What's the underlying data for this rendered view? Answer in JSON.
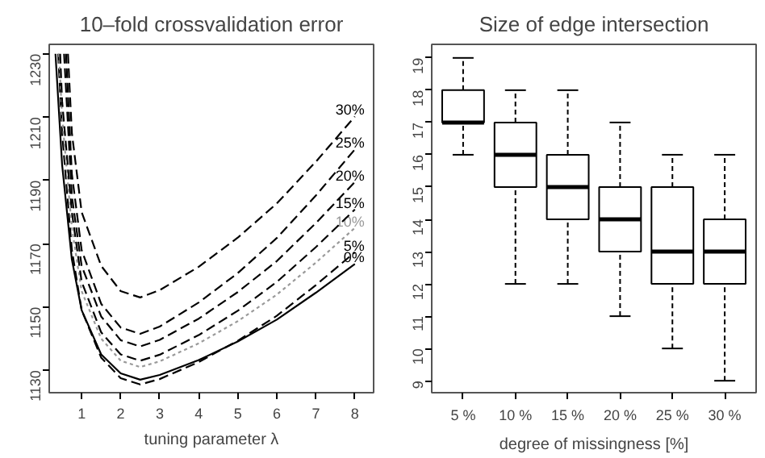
{
  "chart_data": [
    {
      "type": "line",
      "title": "10–fold crossvalidation error",
      "xlabel": "tuning parameter λ",
      "xlim": [
        0.17,
        8.48
      ],
      "ylim": [
        1122.9,
        1233
      ],
      "xticks": [
        1,
        2,
        3,
        4,
        5,
        6,
        7,
        8
      ],
      "yticks": [
        1130,
        1150,
        1170,
        1190,
        1210,
        1230
      ],
      "grid": false,
      "marker": "none",
      "series": [
        {
          "name": "0%",
          "color": "#000000",
          "line_style": "solid",
          "x": [
            0.33,
            0.5,
            0.75,
            1,
            1.5,
            2,
            2.5,
            3,
            4,
            5,
            6,
            7,
            8
          ],
          "values": [
            1230,
            1195,
            1165,
            1149,
            1135,
            1129,
            1127,
            1128.5,
            1133.2,
            1139.1,
            1146.0,
            1154.5,
            1163.6
          ]
        },
        {
          "name": "5%",
          "color": "#000000",
          "line_style": "dashed",
          "x": [
            0.4,
            0.5,
            0.75,
            1,
            1.5,
            2,
            2.5,
            3,
            4,
            5,
            6,
            7,
            8
          ],
          "values": [
            1230,
            1205,
            1168,
            1149,
            1134,
            1127.5,
            1125.5,
            1127.2,
            1132.6,
            1139.3,
            1147.2,
            1156.9,
            1167.3
          ]
        },
        {
          "name": "10%",
          "color": "#999999",
          "line_style": "dotted",
          "x": [
            0.42,
            0.5,
            0.75,
            1,
            1.5,
            2,
            2.5,
            3,
            4,
            5,
            6,
            7,
            8
          ],
          "values": [
            1230,
            1210,
            1175,
            1155,
            1140,
            1133,
            1131,
            1132.8,
            1138.5,
            1145.5,
            1153.9,
            1164,
            1175
          ]
        },
        {
          "name": "15%",
          "color": "#000000",
          "line_style": "dashed",
          "x": [
            0.45,
            0.5,
            0.75,
            1,
            1.5,
            2,
            2.5,
            3,
            4,
            5,
            6,
            7,
            8
          ],
          "values": [
            1230,
            1215,
            1180,
            1158,
            1142,
            1135,
            1133,
            1134.9,
            1141.1,
            1148.8,
            1157.9,
            1168.9,
            1180.8
          ]
        },
        {
          "name": "20%",
          "color": "#000000",
          "line_style": "dashed",
          "x": [
            0.55,
            0.75,
            1,
            1.5,
            2,
            2.5,
            3,
            4,
            5,
            6,
            7,
            8
          ],
          "values": [
            1230,
            1185,
            1163,
            1147,
            1139.5,
            1137.5,
            1139.6,
            1146.3,
            1154.7,
            1164.5,
            1176.5,
            1189.5
          ]
        },
        {
          "name": "25%",
          "color": "#000000",
          "line_style": "dashed",
          "x": [
            0.6,
            0.75,
            1,
            1.5,
            2,
            2.5,
            3,
            4,
            5,
            6,
            7,
            8
          ],
          "values": [
            1230,
            1192,
            1168,
            1151,
            1143.5,
            1141.5,
            1143.8,
            1151.4,
            1160.7,
            1171.8,
            1185.2,
            1199.8
          ]
        },
        {
          "name": "30%",
          "color": "#000000",
          "line_style": "dashed",
          "x": [
            0.65,
            0.75,
            1,
            1.5,
            2,
            2.5,
            3,
            4,
            5,
            6,
            7,
            8
          ],
          "values": [
            1230,
            1205,
            1180,
            1163,
            1155,
            1153,
            1155.3,
            1162.7,
            1171.9,
            1182.7,
            1195.9,
            1210.2
          ]
        }
      ]
    },
    {
      "type": "box",
      "title": "Size of edge intersection",
      "xlabel": "degree of missingness [%]",
      "categories": [
        "5 %",
        "10 %",
        "15 %",
        "20 %",
        "25 %",
        "30 %"
      ],
      "ylim": [
        8.63,
        19.42
      ],
      "yticks": [
        9,
        10,
        11,
        12,
        13,
        14,
        15,
        16,
        17,
        18,
        19
      ],
      "grid": false,
      "boxes": [
        {
          "low": 16,
          "q1": 17,
          "median": 17,
          "q3": 18,
          "high": 19
        },
        {
          "low": 12,
          "q1": 15,
          "median": 16,
          "q3": 17,
          "high": 18
        },
        {
          "low": 12,
          "q1": 14,
          "median": 15,
          "q3": 16,
          "high": 18
        },
        {
          "low": 11,
          "q1": 13,
          "median": 14,
          "q3": 15,
          "high": 17
        },
        {
          "low": 10,
          "q1": 12,
          "median": 13,
          "q3": 15,
          "high": 16
        },
        {
          "low": 9,
          "q1": 12,
          "median": 13,
          "q3": 14,
          "high": 16
        }
      ]
    }
  ]
}
